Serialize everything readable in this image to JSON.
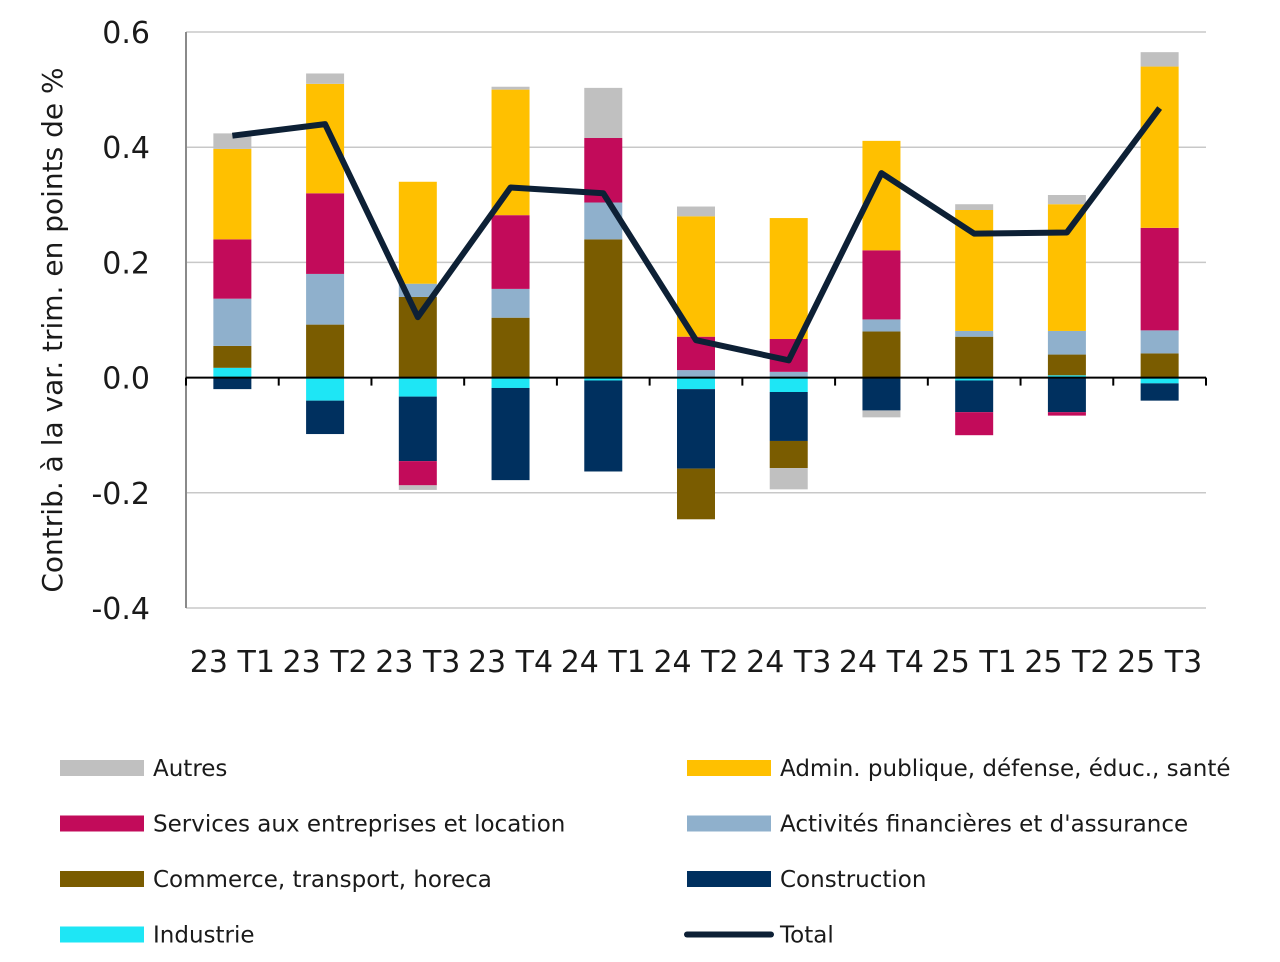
{
  "chart_data": {
    "type": "bar",
    "stacked": true,
    "ylabel": "Contrib. à la var. trim. en points de %",
    "ylim": [
      -0.4,
      0.6
    ],
    "yticks": [
      "0.6",
      "0.4",
      "0.2",
      "0.0",
      "-0.2",
      "-0.4"
    ],
    "ytick_values": [
      0.6,
      0.4,
      0.2,
      0.0,
      -0.2,
      -0.4
    ],
    "grid": true,
    "legend_position": "bottom",
    "categories": [
      "23 T1",
      "23 T2",
      "23 T3",
      "23 T4",
      "24 T1",
      "24 T2",
      "24 T3",
      "24 T4",
      "25 T1",
      "25 T2",
      "25 T3"
    ],
    "series": [
      {
        "name": "Industrie",
        "color": "#1ee6f5",
        "values": [
          0.017,
          -0.04,
          -0.033,
          -0.018,
          -0.005,
          -0.02,
          -0.025,
          0.0,
          -0.005,
          0.004,
          -0.01
        ]
      },
      {
        "name": "Construction",
        "color": "#00305f",
        "values": [
          -0.02,
          -0.058,
          -0.112,
          -0.16,
          -0.158,
          -0.138,
          -0.085,
          -0.057,
          -0.055,
          -0.06,
          -0.03
        ]
      },
      {
        "name": "Commerce, transport, horeca",
        "color": "#7a5c00",
        "values": [
          0.038,
          0.092,
          0.14,
          0.104,
          0.24,
          -0.088,
          -0.047,
          0.08,
          0.071,
          0.036,
          0.042
        ]
      },
      {
        "name": "Activités financières et d'assurance",
        "color": "#8fb0cc",
        "values": [
          0.082,
          0.088,
          0.023,
          0.05,
          0.064,
          0.013,
          0.01,
          0.021,
          0.01,
          0.041,
          0.04
        ]
      },
      {
        "name": "Services aux entreprises et location",
        "color": "#c20b5a",
        "values": [
          0.103,
          0.14,
          -0.042,
          0.128,
          0.112,
          0.058,
          0.057,
          0.12,
          -0.04,
          -0.006,
          0.178
        ]
      },
      {
        "name": "Admin. publique, défense, éduc., santé",
        "color": "#ffc000",
        "values": [
          0.157,
          0.19,
          0.177,
          0.218,
          0.0,
          0.209,
          0.21,
          0.19,
          0.21,
          0.22,
          0.28
        ]
      },
      {
        "name": "Autres",
        "color": "#c0c0c0",
        "values": [
          0.027,
          0.018,
          -0.008,
          0.005,
          0.087,
          0.017,
          -0.037,
          -0.012,
          0.01,
          0.016,
          0.025
        ]
      }
    ],
    "line_series": {
      "name": "Total",
      "color": "#0d2035",
      "values": [
        0.42,
        0.44,
        0.105,
        0.33,
        0.32,
        0.065,
        0.03,
        0.355,
        0.25,
        0.252,
        0.468
      ]
    },
    "legend_order": [
      "Autres",
      "Admin. publique, défense, éduc., santé",
      "Services aux entreprises et location",
      "Activités financières et d'assurance",
      "Commerce, transport, horeca",
      "Construction",
      "Industrie",
      "Total"
    ]
  }
}
